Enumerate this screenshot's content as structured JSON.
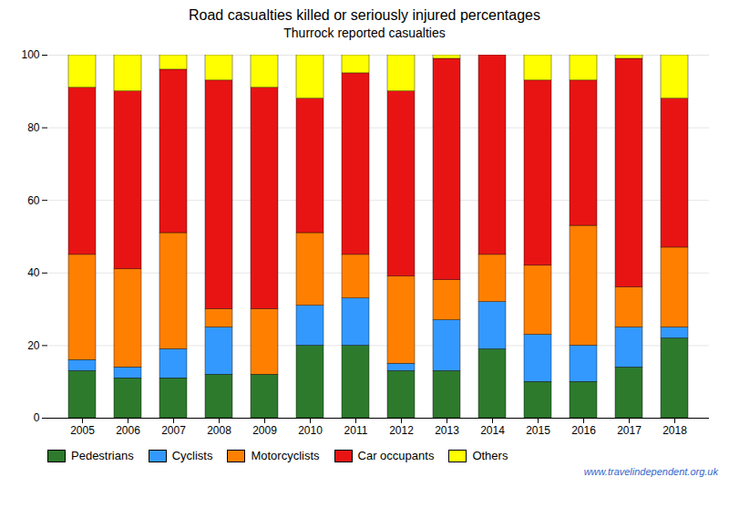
{
  "chart_data": {
    "type": "bar",
    "title": "Road casualties killed or seriously injured percentages",
    "subtitle": "Thurrock reported casualties",
    "categories": [
      "2005",
      "2006",
      "2007",
      "2008",
      "2009",
      "2010",
      "2011",
      "2012",
      "2013",
      "2014",
      "2015",
      "2016",
      "2017",
      "2018"
    ],
    "series": [
      {
        "name": "Pedestrians",
        "color": "#2d7a2d",
        "values": [
          13,
          11,
          11,
          12,
          12,
          20,
          20,
          13,
          13,
          19,
          10,
          10,
          14,
          22
        ]
      },
      {
        "name": "Cyclists",
        "color": "#3399ff",
        "values": [
          3,
          3,
          8,
          13,
          0,
          11,
          13,
          2,
          14,
          13,
          13,
          10,
          11,
          3
        ]
      },
      {
        "name": "Motorcyclists",
        "color": "#ff8000",
        "values": [
          29,
          27,
          32,
          5,
          18,
          20,
          12,
          24,
          11,
          13,
          19,
          33,
          11,
          22
        ]
      },
      {
        "name": "Car occupants",
        "color": "#e81414",
        "values": [
          46,
          49,
          45,
          63,
          61,
          37,
          50,
          51,
          61,
          55,
          51,
          40,
          63,
          41
        ]
      },
      {
        "name": "Others",
        "color": "#ffff00",
        "values": [
          9,
          10,
          4,
          7,
          9,
          12,
          5,
          10,
          1,
          0,
          7,
          7,
          1,
          12
        ]
      }
    ],
    "stacked": true,
    "ylim": [
      0,
      100
    ],
    "yticks": [
      0,
      20,
      40,
      60,
      80,
      100
    ],
    "grid": true,
    "legend": "bottom",
    "annotations": [
      {
        "text": "www.travelindependent.org.uk",
        "color": "#3366cc"
      }
    ]
  }
}
